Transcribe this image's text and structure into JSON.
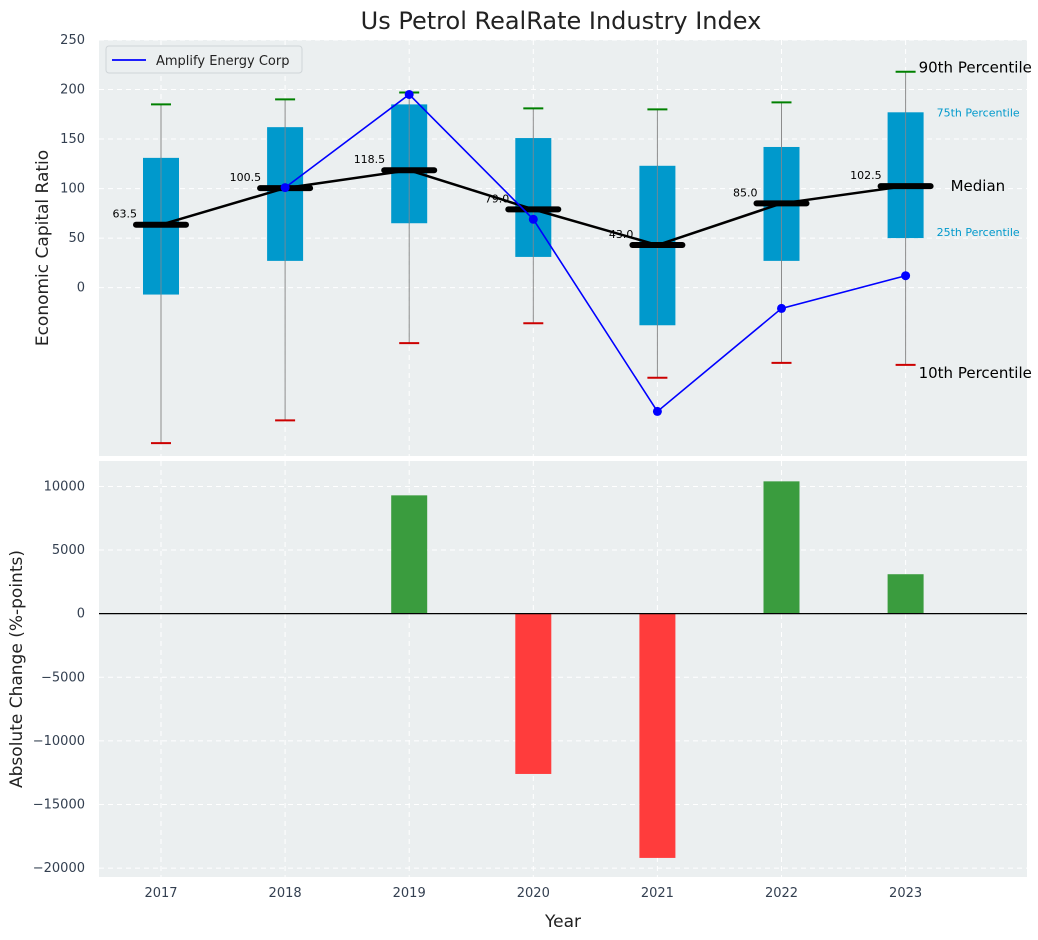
{
  "chart_data": [
    {
      "type": "box",
      "title": "Us Petrol RealRate Industry Index",
      "ylabel": "Economic Capital Ratio",
      "ylim": [
        -170,
        250
      ],
      "yticks": [
        0,
        50,
        100,
        150,
        200,
        250
      ],
      "categories": [
        "2017",
        "2018",
        "2019",
        "2020",
        "2021",
        "2022",
        "2023"
      ],
      "p10": [
        -157,
        -134,
        -56,
        -36,
        -91,
        -76,
        -78
      ],
      "p25": [
        -7,
        27,
        65,
        31,
        -38,
        27,
        50
      ],
      "median": [
        63.5,
        100.5,
        118.5,
        79.0,
        43.0,
        85.0,
        102.5
      ],
      "median_labels": [
        "63.5",
        "100.5",
        "118.5",
        "79.0",
        "43.0",
        "85.0",
        "102.5"
      ],
      "p75": [
        131,
        162,
        185,
        151,
        123,
        142,
        177
      ],
      "p90": [
        185,
        190,
        197,
        181,
        180,
        187,
        218
      ],
      "series": [
        {
          "name": "Amplify Energy Corp",
          "values": [
            null,
            101,
            195,
            69,
            -125,
            -21,
            12
          ],
          "color": "#0000ff"
        }
      ],
      "percentile_labels": {
        "p90": "90th Percentile",
        "p75": "75th Percentile",
        "median": "Median",
        "p25": "25th Percentile",
        "p10": "10th Percentile"
      },
      "legend": {
        "position": "top-left"
      },
      "grid": true,
      "colors": {
        "box": "#0099cc",
        "median": "#000000",
        "p90_cap": "#008000",
        "p10_cap": "#cc0000",
        "background": "#ebeff0"
      }
    },
    {
      "type": "bar",
      "ylabel": "Absolute Change (%-points)",
      "xlabel": "Year",
      "ylim": [
        -20700,
        12000
      ],
      "yticks": [
        10000,
        5000,
        0,
        -5000,
        -10000,
        -15000,
        -20000
      ],
      "ytick_labels": [
        "10000",
        "5000",
        "0",
        "−5000",
        "−10000",
        "−15000",
        "−20000"
      ],
      "categories": [
        "2017",
        "2018",
        "2019",
        "2020",
        "2021",
        "2022",
        "2023"
      ],
      "values": [
        0,
        0,
        9300,
        -12600,
        -19200,
        10400,
        3100
      ],
      "grid": true,
      "colors": {
        "positive": "#3a9c3e",
        "negative": "#ff3c3c"
      }
    }
  ]
}
